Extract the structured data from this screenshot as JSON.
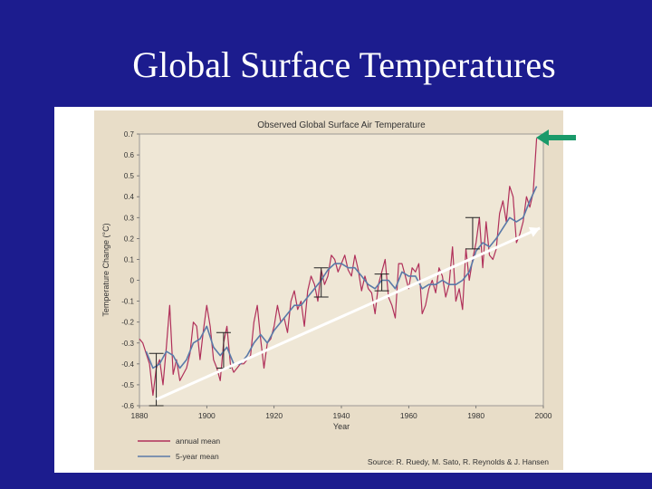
{
  "slide": {
    "title": "Global Surface Temperatures"
  },
  "chart_data": {
    "type": "line",
    "title": "Observed Global Surface Air Temperature",
    "xlabel": "Year",
    "ylabel": "Temperature Change (°C)",
    "xlim": [
      1880,
      2000
    ],
    "ylim": [
      -0.6,
      0.7
    ],
    "x_ticks": [
      1880,
      1900,
      1920,
      1940,
      1960,
      1980,
      2000
    ],
    "y_ticks": [
      -0.6,
      -0.5,
      -0.4,
      -0.3,
      -0.2,
      -0.1,
      0,
      0.1,
      0.2,
      0.3,
      0.4,
      0.5,
      0.6,
      0.7
    ],
    "legend": {
      "placement": "bottom-left",
      "entries": [
        "annual mean",
        "5-year mean"
      ]
    },
    "source": "Source: R. Ruedy, M. Sato, R. Reynolds & J. Hansen",
    "series": [
      {
        "name": "annual mean",
        "color": "#b0305a",
        "x": [
          1880,
          1881,
          1882,
          1883,
          1884,
          1885,
          1886,
          1887,
          1888,
          1889,
          1890,
          1891,
          1892,
          1893,
          1894,
          1895,
          1896,
          1897,
          1898,
          1899,
          1900,
          1901,
          1902,
          1903,
          1904,
          1905,
          1906,
          1907,
          1908,
          1909,
          1910,
          1911,
          1912,
          1913,
          1914,
          1915,
          1916,
          1917,
          1918,
          1919,
          1920,
          1921,
          1922,
          1923,
          1924,
          1925,
          1926,
          1927,
          1928,
          1929,
          1930,
          1931,
          1932,
          1933,
          1934,
          1935,
          1936,
          1937,
          1938,
          1939,
          1940,
          1941,
          1942,
          1943,
          1944,
          1945,
          1946,
          1947,
          1948,
          1949,
          1950,
          1951,
          1952,
          1953,
          1954,
          1955,
          1956,
          1957,
          1958,
          1959,
          1960,
          1961,
          1962,
          1963,
          1964,
          1965,
          1966,
          1967,
          1968,
          1969,
          1970,
          1971,
          1972,
          1973,
          1974,
          1975,
          1976,
          1977,
          1978,
          1979,
          1980,
          1981,
          1982,
          1983,
          1984,
          1985,
          1986,
          1987,
          1988,
          1989,
          1990,
          1991,
          1992,
          1993,
          1994,
          1995,
          1996,
          1997,
          1998
        ],
        "values": [
          -0.28,
          -0.3,
          -0.35,
          -0.4,
          -0.55,
          -0.42,
          -0.38,
          -0.5,
          -0.32,
          -0.12,
          -0.45,
          -0.38,
          -0.48,
          -0.45,
          -0.42,
          -0.35,
          -0.2,
          -0.22,
          -0.38,
          -0.24,
          -0.12,
          -0.22,
          -0.38,
          -0.42,
          -0.48,
          -0.3,
          -0.22,
          -0.4,
          -0.44,
          -0.42,
          -0.4,
          -0.4,
          -0.38,
          -0.36,
          -0.2,
          -0.12,
          -0.28,
          -0.42,
          -0.3,
          -0.28,
          -0.22,
          -0.12,
          -0.2,
          -0.18,
          -0.25,
          -0.1,
          -0.05,
          -0.14,
          -0.1,
          -0.22,
          -0.05,
          0.02,
          -0.02,
          -0.1,
          0.05,
          -0.02,
          0.02,
          0.12,
          0.1,
          0.04,
          0.08,
          0.12,
          0.05,
          0.02,
          0.12,
          0.05,
          -0.05,
          0.02,
          -0.04,
          -0.06,
          -0.16,
          -0.02,
          0.04,
          0.1,
          -0.08,
          -0.12,
          -0.18,
          0.08,
          0.08,
          0.02,
          -0.04,
          0.06,
          0.04,
          0.08,
          -0.16,
          -0.12,
          -0.04,
          0.0,
          -0.06,
          0.06,
          0.02,
          -0.08,
          -0.02,
          0.16,
          -0.1,
          -0.04,
          -0.14,
          0.15,
          0.0,
          0.1,
          0.18,
          0.3,
          0.06,
          0.28,
          0.12,
          0.1,
          0.15,
          0.32,
          0.38,
          0.28,
          0.45,
          0.4,
          0.18,
          0.22,
          0.28,
          0.4,
          0.35,
          0.42,
          0.68
        ]
      },
      {
        "name": "5-year mean",
        "color": "#5a7aa8",
        "x": [
          1882,
          1884,
          1886,
          1888,
          1890,
          1892,
          1894,
          1896,
          1898,
          1900,
          1902,
          1904,
          1906,
          1908,
          1910,
          1912,
          1914,
          1916,
          1918,
          1920,
          1922,
          1924,
          1926,
          1928,
          1930,
          1932,
          1934,
          1936,
          1938,
          1940,
          1942,
          1944,
          1946,
          1948,
          1950,
          1952,
          1954,
          1956,
          1958,
          1960,
          1962,
          1964,
          1966,
          1968,
          1970,
          1972,
          1974,
          1976,
          1978,
          1980,
          1982,
          1984,
          1986,
          1988,
          1990,
          1992,
          1994,
          1996,
          1998
        ],
        "values": [
          -0.34,
          -0.42,
          -0.4,
          -0.34,
          -0.36,
          -0.42,
          -0.38,
          -0.3,
          -0.28,
          -0.22,
          -0.32,
          -0.36,
          -0.32,
          -0.4,
          -0.4,
          -0.36,
          -0.3,
          -0.26,
          -0.3,
          -0.24,
          -0.2,
          -0.16,
          -0.12,
          -0.12,
          -0.08,
          -0.04,
          0.0,
          0.05,
          0.08,
          0.08,
          0.06,
          0.06,
          0.02,
          -0.02,
          -0.04,
          0.0,
          0.0,
          -0.04,
          0.04,
          0.02,
          0.02,
          -0.04,
          -0.02,
          -0.02,
          0.0,
          -0.02,
          -0.02,
          0.0,
          0.04,
          0.14,
          0.18,
          0.16,
          0.2,
          0.25,
          0.3,
          0.28,
          0.3,
          0.38,
          0.45
        ]
      }
    ],
    "error_bars": [
      {
        "year": 1885,
        "lo": -0.6,
        "hi": -0.35
      },
      {
        "year": 1905,
        "lo": -0.42,
        "hi": -0.25
      },
      {
        "year": 1934,
        "lo": -0.08,
        "hi": 0.06
      },
      {
        "year": 1952,
        "lo": -0.05,
        "hi": 0.03
      },
      {
        "year": 1979,
        "lo": 0.15,
        "hi": 0.3
      }
    ],
    "trend_arrow": {
      "start": [
        1885,
        -0.57
      ],
      "end": [
        1999,
        0.25
      ],
      "color": "#ffffff"
    },
    "pointer_arrow": {
      "color": "#1a9a6a"
    }
  }
}
